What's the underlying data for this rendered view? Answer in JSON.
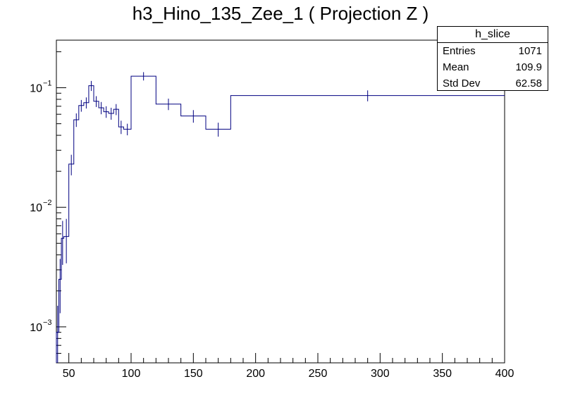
{
  "chart_data": {
    "type": "histogram",
    "title": "h3_Hino_135_Zee_1 ( Projection Z )",
    "xlabel": "",
    "ylabel": "",
    "xlim": [
      40,
      400
    ],
    "ylim": [
      0.0005,
      0.25
    ],
    "yscale": "log",
    "line_color": "#000080",
    "x_ticks": [
      {
        "value": 50,
        "label": "50"
      },
      {
        "value": 100,
        "label": "100"
      },
      {
        "value": 150,
        "label": "150"
      },
      {
        "value": 200,
        "label": "200"
      },
      {
        "value": 250,
        "label": "250"
      },
      {
        "value": 300,
        "label": "300"
      },
      {
        "value": 350,
        "label": "350"
      },
      {
        "value": 400,
        "label": "400"
      }
    ],
    "y_ticks": [
      {
        "value": 0.001,
        "base": "10",
        "exp": "−3"
      },
      {
        "value": 0.01,
        "base": "10",
        "exp": "−2"
      },
      {
        "value": 0.1,
        "base": "10",
        "exp": "−1"
      }
    ],
    "bins": [
      {
        "lo": 40,
        "hi": 42,
        "y": 0.0009,
        "err": 0.0006
      },
      {
        "lo": 42,
        "hi": 44,
        "y": 0.0025,
        "err": 0.0012
      },
      {
        "lo": 44,
        "hi": 46,
        "y": 0.0055,
        "err": 0.0022
      },
      {
        "lo": 46,
        "hi": 50,
        "y": 0.0057,
        "err": 0.0023
      },
      {
        "lo": 50,
        "hi": 54,
        "y": 0.023,
        "err": 0.0045
      },
      {
        "lo": 54,
        "hi": 58,
        "y": 0.054,
        "err": 0.007
      },
      {
        "lo": 58,
        "hi": 62,
        "y": 0.071,
        "err": 0.008
      },
      {
        "lo": 62,
        "hi": 66,
        "y": 0.075,
        "err": 0.008
      },
      {
        "lo": 66,
        "hi": 70,
        "y": 0.104,
        "err": 0.01
      },
      {
        "lo": 70,
        "hi": 74,
        "y": 0.077,
        "err": 0.008
      },
      {
        "lo": 74,
        "hi": 78,
        "y": 0.068,
        "err": 0.008
      },
      {
        "lo": 78,
        "hi": 82,
        "y": 0.063,
        "err": 0.007
      },
      {
        "lo": 82,
        "hi": 86,
        "y": 0.061,
        "err": 0.007
      },
      {
        "lo": 86,
        "hi": 90,
        "y": 0.066,
        "err": 0.007
      },
      {
        "lo": 90,
        "hi": 94,
        "y": 0.047,
        "err": 0.006
      },
      {
        "lo": 94,
        "hi": 100,
        "y": 0.045,
        "err": 0.005
      },
      {
        "lo": 100,
        "hi": 120,
        "y": 0.125,
        "err": 0.01
      },
      {
        "lo": 120,
        "hi": 140,
        "y": 0.073,
        "err": 0.008
      },
      {
        "lo": 140,
        "hi": 160,
        "y": 0.058,
        "err": 0.007
      },
      {
        "lo": 160,
        "hi": 180,
        "y": 0.045,
        "err": 0.006
      },
      {
        "lo": 180,
        "hi": 400,
        "y": 0.086,
        "err": 0.009
      }
    ]
  },
  "stats": {
    "name": "h_slice",
    "rows": [
      {
        "label": "Entries",
        "value": "1071"
      },
      {
        "label": "Mean",
        "value": "109.9"
      },
      {
        "label": "Std Dev",
        "value": "62.58"
      }
    ]
  }
}
